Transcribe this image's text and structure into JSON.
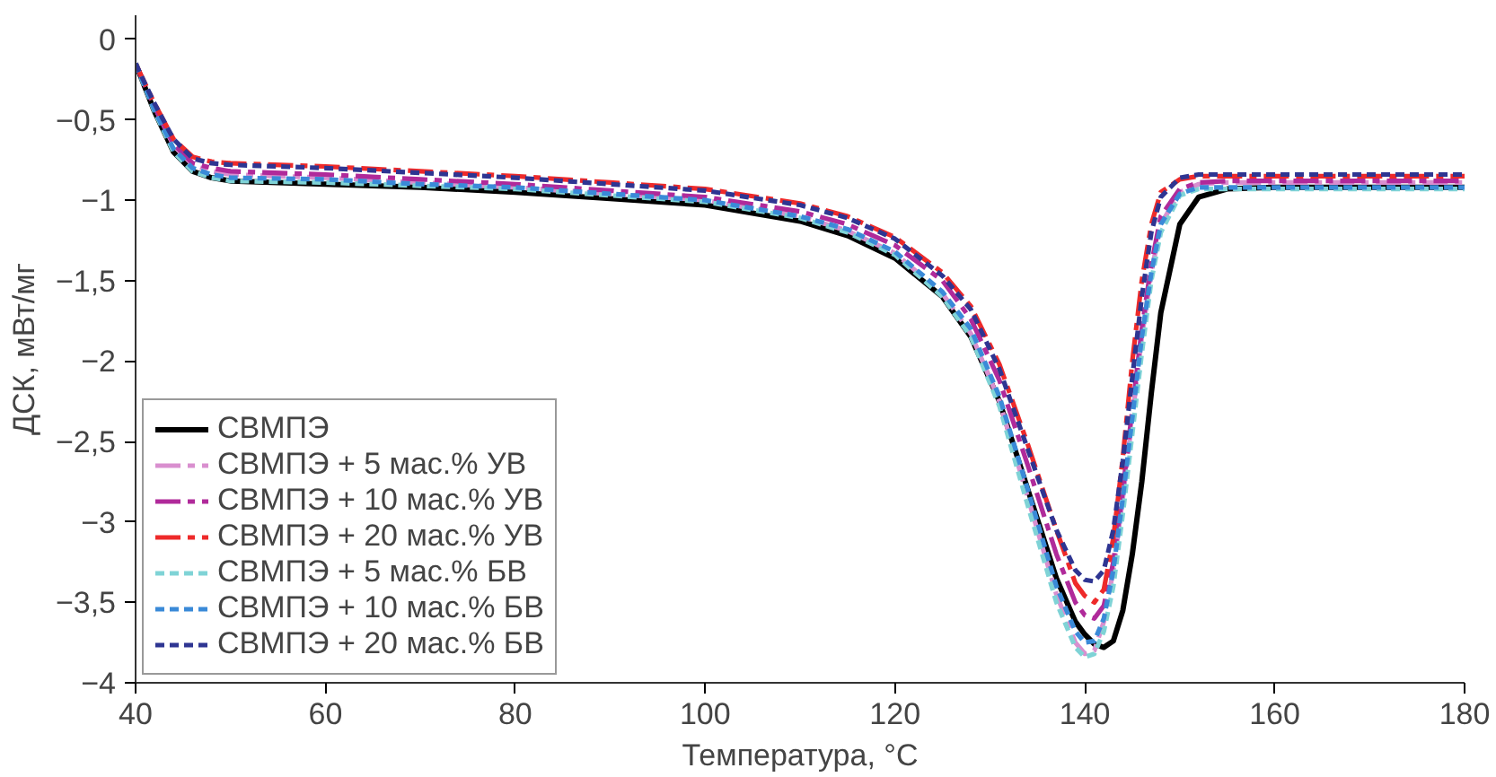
{
  "chart_data": {
    "type": "line",
    "xlabel": "Температура, °C",
    "ylabel": "ДСК, мВт/мг",
    "x": [
      40,
      42,
      44,
      46,
      48,
      50,
      60,
      70,
      80,
      90,
      100,
      110,
      115,
      120,
      125,
      128,
      131,
      134,
      137,
      139,
      140,
      141,
      142,
      143,
      144,
      145,
      146,
      147,
      148,
      150,
      152,
      155,
      160,
      170,
      180
    ],
    "xlim": [
      40,
      180
    ],
    "xticks": [
      40,
      60,
      80,
      100,
      120,
      140,
      160,
      180
    ],
    "ylim": [
      -4,
      0.15
    ],
    "yticks": [
      {
        "value": 0,
        "label": "0"
      },
      {
        "value": -0.5,
        "label": "−0,5"
      },
      {
        "value": -1,
        "label": "−1"
      },
      {
        "value": -1.5,
        "label": "−1,5"
      },
      {
        "value": -2,
        "label": "−2"
      },
      {
        "value": -2.5,
        "label": "−2,5"
      },
      {
        "value": -3,
        "label": "−3"
      },
      {
        "value": -3.5,
        "label": "−3,5"
      },
      {
        "value": -4,
        "label": "−4"
      }
    ],
    "grid": false,
    "legend": "bottom left",
    "marker": "none",
    "series": [
      {
        "name": "СВМПЭ",
        "color": "#000000",
        "line_style": "solid",
        "values": [
          -0.15,
          -0.45,
          -0.7,
          -0.82,
          -0.86,
          -0.88,
          -0.9,
          -0.92,
          -0.95,
          -0.99,
          -1.03,
          -1.13,
          -1.22,
          -1.36,
          -1.6,
          -1.85,
          -2.25,
          -2.8,
          -3.35,
          -3.62,
          -3.7,
          -3.76,
          -3.78,
          -3.74,
          -3.55,
          -3.2,
          -2.75,
          -2.2,
          -1.7,
          -1.15,
          -0.98,
          -0.93,
          -0.92,
          -0.92,
          -0.92
        ]
      },
      {
        "name": "СВМПЭ + 5 мас.% УВ",
        "color": "#d98fcf",
        "line_style": "dashed",
        "values": [
          -0.15,
          -0.42,
          -0.66,
          -0.78,
          -0.82,
          -0.84,
          -0.86,
          -0.89,
          -0.92,
          -0.96,
          -1.0,
          -1.1,
          -1.19,
          -1.33,
          -1.58,
          -1.83,
          -2.25,
          -2.85,
          -3.45,
          -3.75,
          -3.82,
          -3.8,
          -3.62,
          -3.3,
          -2.85,
          -2.35,
          -1.85,
          -1.45,
          -1.15,
          -0.95,
          -0.9,
          -0.89,
          -0.89,
          -0.89,
          -0.89
        ]
      },
      {
        "name": "СВМПЭ + 10 мас.% УВ",
        "color": "#b02a9a",
        "line_style": "dashed",
        "values": [
          -0.15,
          -0.42,
          -0.65,
          -0.77,
          -0.8,
          -0.82,
          -0.84,
          -0.87,
          -0.9,
          -0.94,
          -0.98,
          -1.07,
          -1.15,
          -1.28,
          -1.5,
          -1.74,
          -2.12,
          -2.65,
          -3.2,
          -3.5,
          -3.58,
          -3.6,
          -3.52,
          -3.25,
          -2.8,
          -2.3,
          -1.8,
          -1.4,
          -1.1,
          -0.93,
          -0.89,
          -0.88,
          -0.88,
          -0.88,
          -0.88
        ]
      },
      {
        "name": "СВМПЭ + 20 мас.% УВ",
        "color": "#ee2a2a",
        "line_style": "dashed",
        "values": [
          -0.15,
          -0.4,
          -0.62,
          -0.73,
          -0.76,
          -0.77,
          -0.79,
          -0.82,
          -0.85,
          -0.89,
          -0.93,
          -1.02,
          -1.1,
          -1.23,
          -1.45,
          -1.66,
          -2.02,
          -2.52,
          -3.05,
          -3.38,
          -3.46,
          -3.5,
          -3.42,
          -3.1,
          -2.6,
          -2.0,
          -1.5,
          -1.15,
          -0.95,
          -0.87,
          -0.85,
          -0.85,
          -0.85,
          -0.85,
          -0.85
        ]
      },
      {
        "name": "СВМПЭ + 5 мас.% БВ",
        "color": "#7fd3d6",
        "line_style": "dotted",
        "values": [
          -0.15,
          -0.45,
          -0.7,
          -0.82,
          -0.86,
          -0.88,
          -0.89,
          -0.91,
          -0.93,
          -0.97,
          -1.01,
          -1.11,
          -1.2,
          -1.34,
          -1.6,
          -1.85,
          -2.28,
          -2.9,
          -3.5,
          -3.78,
          -3.84,
          -3.82,
          -3.68,
          -3.4,
          -2.95,
          -2.45,
          -1.95,
          -1.5,
          -1.2,
          -0.97,
          -0.93,
          -0.93,
          -0.93,
          -0.93,
          -0.93
        ]
      },
      {
        "name": "СВМПЭ + 10 мас.% БВ",
        "color": "#3a8ad8",
        "line_style": "dotted",
        "values": [
          -0.15,
          -0.44,
          -0.68,
          -0.8,
          -0.84,
          -0.86,
          -0.87,
          -0.9,
          -0.92,
          -0.96,
          -1.0,
          -1.1,
          -1.18,
          -1.32,
          -1.57,
          -1.8,
          -2.22,
          -2.8,
          -3.4,
          -3.68,
          -3.75,
          -3.74,
          -3.6,
          -3.3,
          -2.85,
          -2.35,
          -1.85,
          -1.45,
          -1.15,
          -0.96,
          -0.92,
          -0.92,
          -0.92,
          -0.92,
          -0.92
        ]
      },
      {
        "name": "СВМПЭ + 20 мас.% БВ",
        "color": "#2e3592",
        "line_style": "dotted",
        "values": [
          -0.15,
          -0.4,
          -0.62,
          -0.74,
          -0.77,
          -0.78,
          -0.8,
          -0.83,
          -0.86,
          -0.9,
          -0.94,
          -1.03,
          -1.11,
          -1.24,
          -1.47,
          -1.68,
          -2.05,
          -2.55,
          -3.05,
          -3.3,
          -3.36,
          -3.37,
          -3.3,
          -3.05,
          -2.62,
          -2.1,
          -1.6,
          -1.2,
          -0.98,
          -0.86,
          -0.84,
          -0.84,
          -0.84,
          -0.84,
          -0.84
        ]
      }
    ]
  }
}
